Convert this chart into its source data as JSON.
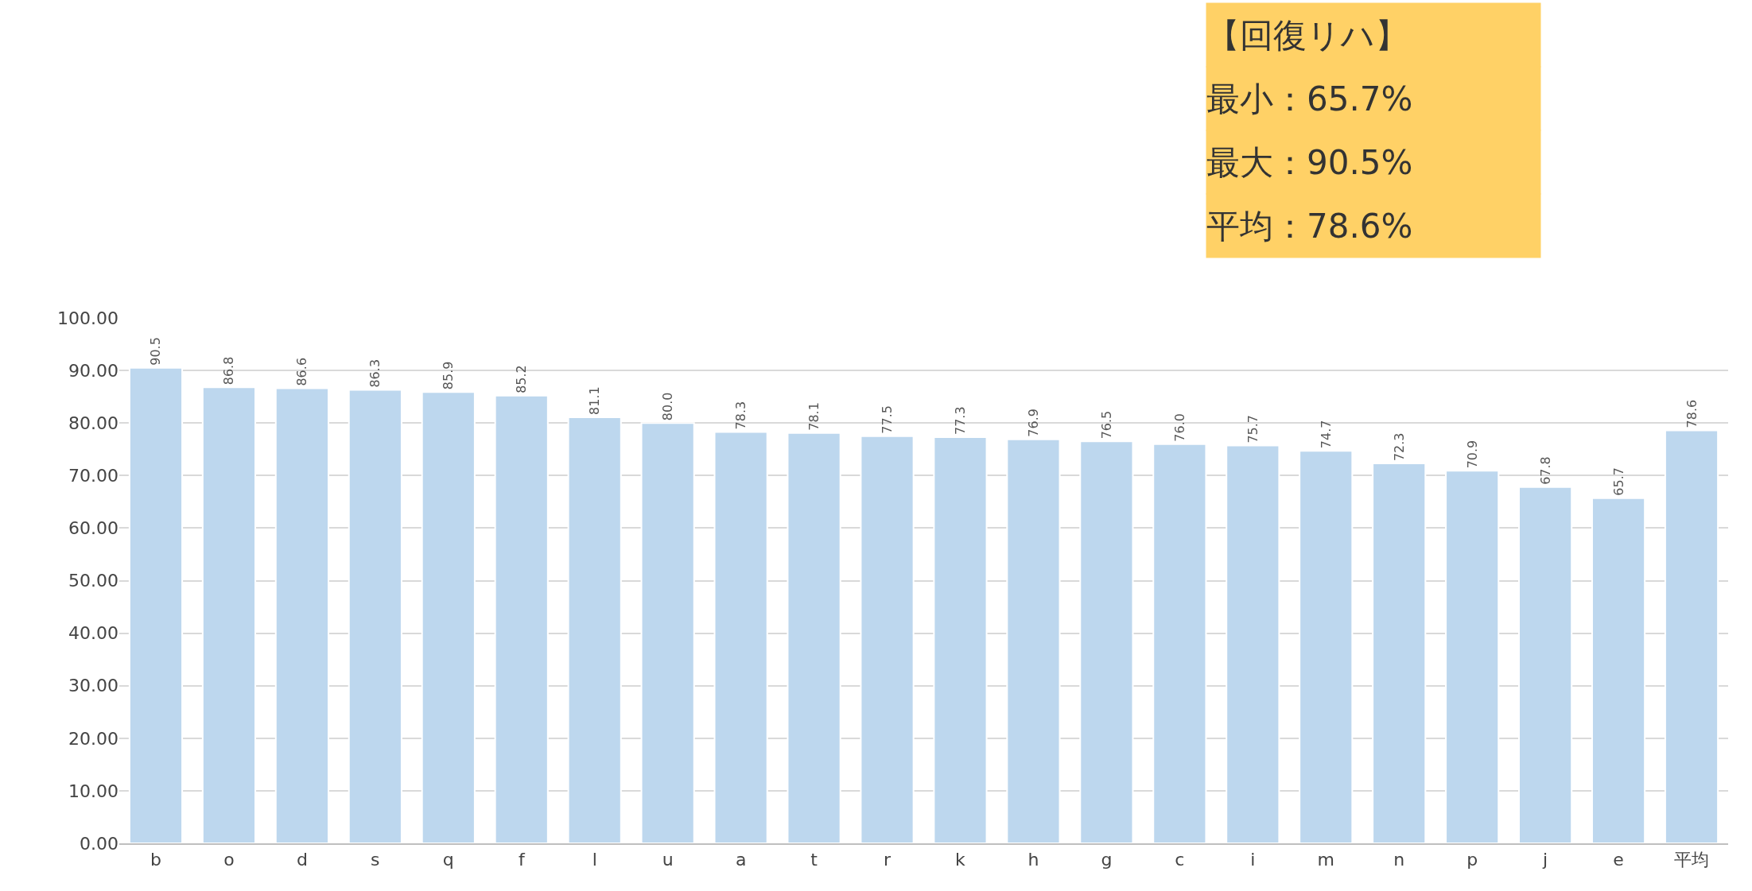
{
  "chart_data": {
    "type": "bar",
    "categories": [
      "b",
      "o",
      "d",
      "s",
      "q",
      "f",
      "l",
      "u",
      "a",
      "t",
      "r",
      "k",
      "h",
      "g",
      "c",
      "i",
      "m",
      "n",
      "p",
      "j",
      "e",
      "平均"
    ],
    "values": [
      90.5,
      86.8,
      86.6,
      86.3,
      85.9,
      85.2,
      81.1,
      80.0,
      78.3,
      78.1,
      77.5,
      77.3,
      76.9,
      76.5,
      76.0,
      75.7,
      74.7,
      72.3,
      70.9,
      67.8,
      65.7,
      78.6
    ],
    "value_labels": [
      "90.5",
      "86.8",
      "86.6",
      "86.3",
      "85.9",
      "85.2",
      "81.1",
      "80.0",
      "78.3",
      "78.1",
      "77.5",
      "77.3",
      "76.9",
      "76.5",
      "76.0",
      "75.7",
      "74.7",
      "72.3",
      "70.9",
      "67.8",
      "65.7",
      "78.6"
    ],
    "color": "#bdd7ee",
    "ylim": [
      0,
      100
    ],
    "yticks": [
      {
        "value": 0,
        "label": "0.00"
      },
      {
        "value": 10,
        "label": "10.00"
      },
      {
        "value": 20,
        "label": "20.00"
      },
      {
        "value": 30,
        "label": "30.00"
      },
      {
        "value": 40,
        "label": "40.00"
      },
      {
        "value": 50,
        "label": "50.00"
      },
      {
        "value": 60,
        "label": "60.00"
      },
      {
        "value": 70,
        "label": "70.00"
      },
      {
        "value": 80,
        "label": "80.00"
      },
      {
        "value": 90,
        "label": "90.00"
      },
      {
        "value": 100,
        "label": "100.00"
      }
    ],
    "grid": "y",
    "legend": false,
    "annotations": [
      "【回復リハ】",
      "最小：65.7%",
      "最大：90.5%",
      "平均：78.6%"
    ]
  }
}
